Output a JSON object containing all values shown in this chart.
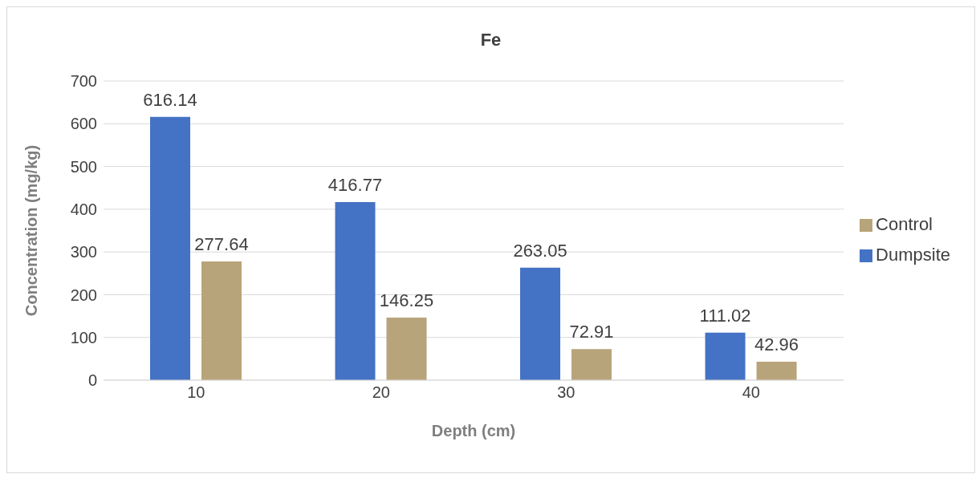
{
  "chart_data": {
    "type": "bar",
    "title": "Fe",
    "xlabel": "Depth (cm)",
    "ylabel": "Concentration (mg/kg)",
    "categories": [
      "10",
      "20",
      "30",
      "40"
    ],
    "series": [
      {
        "name": "Dumpsite",
        "color": "#4472c4",
        "values": [
          616.14,
          416.77,
          263.05,
          111.02
        ]
      },
      {
        "name": "Control",
        "color": "#b8a47a",
        "values": [
          277.64,
          146.25,
          72.91,
          42.96
        ]
      }
    ],
    "ylim": [
      0,
      700
    ],
    "yticks": [
      0,
      100,
      200,
      300,
      400,
      500,
      600,
      700
    ],
    "grid": "y",
    "legend": "right",
    "data_labels": true
  }
}
